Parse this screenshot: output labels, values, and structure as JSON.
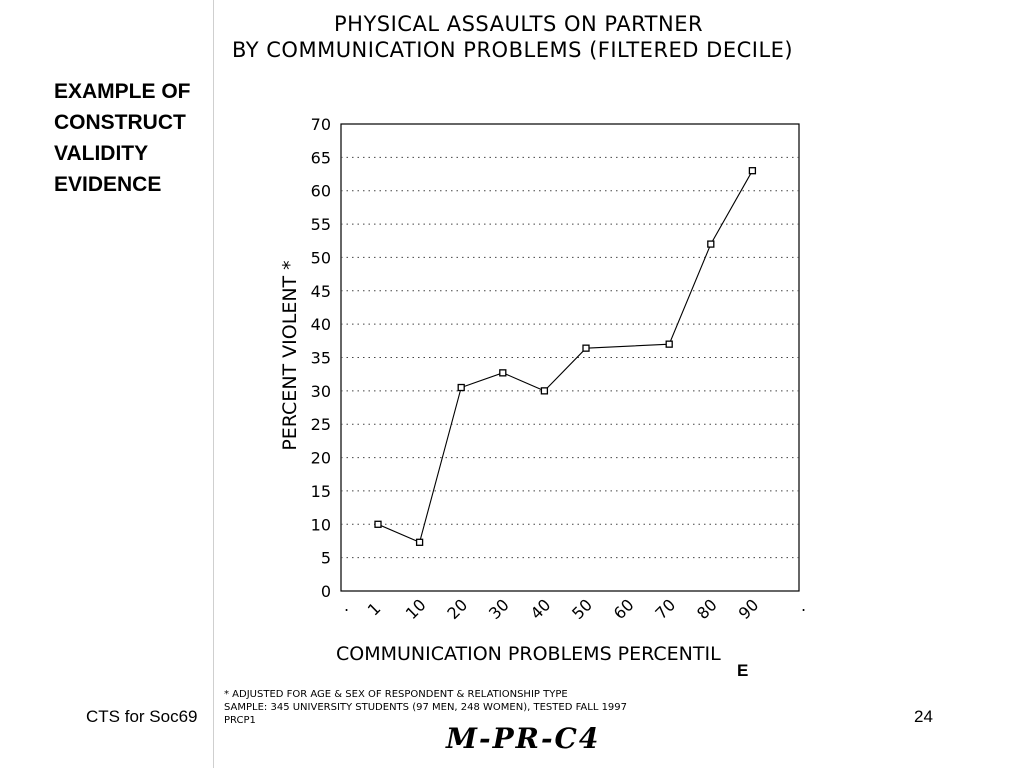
{
  "slide": {
    "heading_lines": [
      "EXAMPLE OF",
      "CONSTRUCT",
      "VALIDITY",
      "EVIDENCE"
    ],
    "footer_left": "CTS for Soc69",
    "page_number": "24"
  },
  "chart_data": {
    "type": "line",
    "title_lines": [
      "PHYSICAL ASSAULTS ON PARTNER",
      "BY COMMUNICATION PROBLEMS (FILTERED DECILE)"
    ],
    "xlabel": "COMMUNICATION PROBLEMS PERCENTIL",
    "xlabel_tail": "E",
    "ylabel": "PERCENT VIOLENT *",
    "categories": [
      "1",
      "10",
      "20",
      "30",
      "40",
      "50",
      "60",
      "70",
      "80",
      "90"
    ],
    "values": [
      10,
      7.3,
      30.5,
      32.7,
      30,
      36.4,
      null,
      37,
      52,
      63
    ],
    "ylim": [
      0,
      70
    ],
    "yticks": [
      0,
      5,
      10,
      15,
      20,
      25,
      30,
      35,
      40,
      45,
      50,
      55,
      60,
      65,
      70
    ],
    "grid": true,
    "legend": "none"
  },
  "footnotes": [
    "* ADJUSTED FOR AGE & SEX OF RESPONDENT & RELATIONSHIP TYPE",
    "SAMPLE: 345 UNIVERSITY STUDENTS (97 MEN, 248 WOMEN), TESTED FALL 1997",
    "PRCP1"
  ],
  "signature": "M-PR-C4",
  "colors": {
    "ink": "#000000",
    "grid": "#444444",
    "background": "#ffffff"
  }
}
